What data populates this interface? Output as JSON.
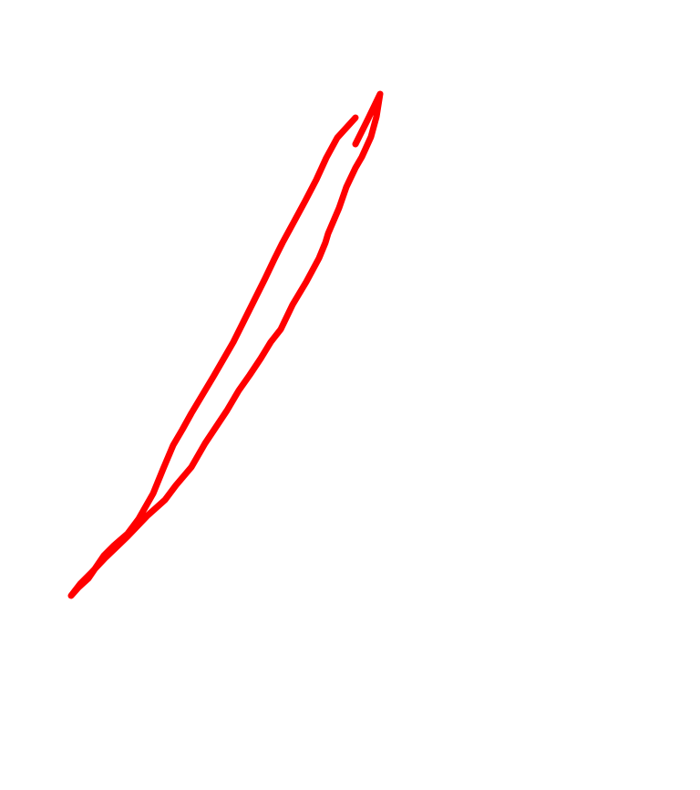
{
  "canvas": {
    "background": "#ffffff",
    "stroke_color": "#ff0000",
    "tool": "freehand-pen"
  }
}
